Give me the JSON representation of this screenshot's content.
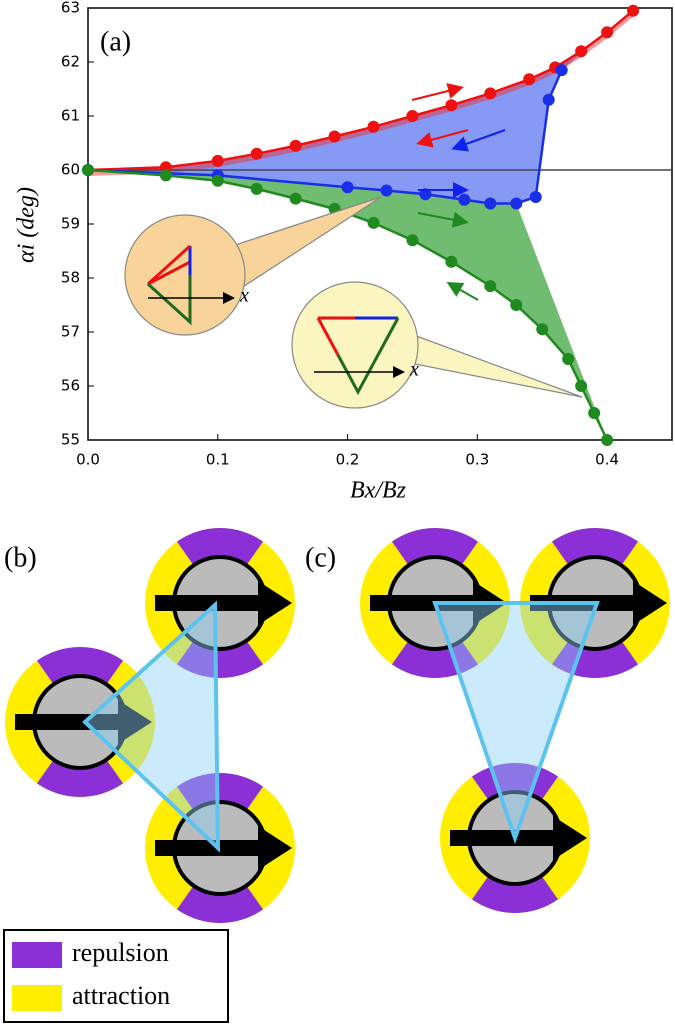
{
  "chart_data": {
    "type": "line",
    "panel_label": "(a)",
    "xlabel": "Bx/Bz",
    "ylabel": "αi (deg)",
    "xlim": [
      0,
      0.45
    ],
    "ylim": [
      55,
      63
    ],
    "xticks": [
      {
        "value": 0,
        "label": "0.0"
      },
      0.1,
      0.2,
      0.3,
      0.4
    ],
    "yticks": [
      55,
      56,
      57,
      58,
      59,
      60,
      61,
      62,
      63
    ],
    "reference_line": 60,
    "series": [
      {
        "color": "#ee1111",
        "x": [
          0,
          0.06,
          0.1,
          0.13,
          0.16,
          0.19,
          0.22,
          0.25,
          0.28,
          0.31,
          0.34,
          0.36,
          0.38,
          0.4,
          0.42
        ],
        "values": [
          60,
          60.05,
          60.17,
          60.3,
          60.45,
          60.62,
          60.8,
          61.0,
          61.2,
          61.42,
          61.68,
          61.9,
          62.2,
          62.55,
          62.95
        ]
      },
      {
        "color": "#1a2ee8",
        "x": [
          0,
          0.1,
          0.2,
          0.23,
          0.26,
          0.29,
          0.31,
          0.33,
          0.345,
          0.355,
          0.365
        ],
        "values": [
          60,
          59.9,
          59.68,
          59.62,
          59.55,
          59.45,
          59.38,
          59.38,
          59.5,
          61.3,
          61.85
        ]
      },
      {
        "color": "#1f8a1f",
        "x": [
          0,
          0.06,
          0.1,
          0.13,
          0.16,
          0.19,
          0.22,
          0.25,
          0.28,
          0.31,
          0.33,
          0.35,
          0.37,
          0.38,
          0.39,
          0.4
        ],
        "values": [
          60,
          59.9,
          59.8,
          59.65,
          59.47,
          59.28,
          59.02,
          58.7,
          58.3,
          57.85,
          57.5,
          57.05,
          56.5,
          56.0,
          55.5,
          55.0
        ]
      }
    ],
    "inset_axis_labels": [
      "x",
      "x"
    ]
  },
  "panels": {
    "b": "(b)",
    "c": "(c)"
  },
  "legend": {
    "repulsion": "repulsion",
    "attraction": "attraction"
  }
}
